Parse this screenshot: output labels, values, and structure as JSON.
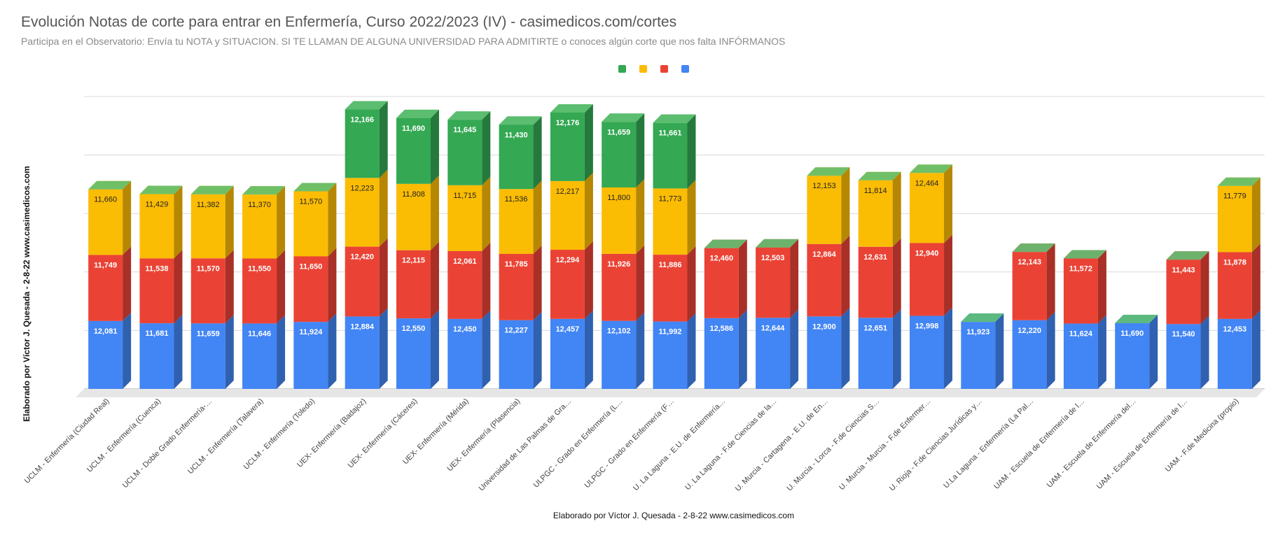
{
  "chart_data": {
    "type": "bar",
    "stacked": true,
    "three_d": true,
    "title": "Evolución Notas de corte para entrar en Enfermería, Curso 2022/2023 (IV) - casimedicos.com/cortes",
    "subtitle": "Participa en el Observatorio: Envía tu NOTA y SITUACION. SI TE LLAMAN DE ALGUNA UNIVERSIDAD PARA ADMITIRTE o conoces algún corte que nos falta INFÓRMANOS",
    "xlabel": "Elaborado por Víctor J. Quesada - 2-8-22  www.casimedicos.com",
    "ylabel": "Elaborado por Víctor J. Quesada - 2-8-22  www.casimedicos.com",
    "legend_position": "top-center",
    "grid": true,
    "ylim": [
      0,
      52
    ],
    "categories": [
      "UCLM - Enfermería (Ciudad Real)",
      "UCLM - Enfermería (Cuenca)",
      "UCLM - Doble Grado Enfermería-…",
      "UCLM - Enfermería (Talavera)",
      "UCLM - Enfermería (Toledo)",
      "UEX- Enfermería (Badajoz)",
      "UEX- Enfermería (Cáceres)",
      "UEX- Enfermería (Mérida)",
      "UEX- Enfermería (Plasencia)",
      "Universidad de Las Palmas de Gra…",
      "ULPGC - Grado en Enfermería (L…",
      "ULPGC - Grado en Enfermería (F…",
      "U. La Laguna - E.U. de Enfermería…",
      "U. La Laguna - F.de Ciencias de la…",
      "U. Murcia - Cartagena - E.U. de En…",
      "U. Murcia - Lorca - F.de Ciencias S…",
      "U. Murcia - Murcia - F.de Enfermer…",
      "U. Rioja - F.de Ciencias Jurídicas y…",
      "U.La Laguna - Enfermería (La Pal…",
      "UAM - Escuela de Enfermería de l…",
      "UAM - Escuela de Enfermería del…",
      "UAM - Escuela de Enfermería de l…",
      "UAM - F.de Medicina (propio)"
    ],
    "series": [
      {
        "color": "#4285f4",
        "values": [
          12.081,
          11.681,
          11.659,
          11.646,
          11.924,
          12.884,
          12.55,
          12.45,
          12.227,
          12.457,
          12.102,
          11.992,
          12.586,
          12.644,
          12.9,
          12.651,
          12.998,
          11.923,
          12.22,
          11.624,
          11.69,
          11.54,
          12.453
        ],
        "labels": [
          "12,081",
          "11,681",
          "11,659",
          "11,646",
          "11,924",
          "12,884",
          "12,550",
          "12,450",
          "12,227",
          "12,457",
          "12,102",
          "11,992",
          "12,586",
          "12,644",
          "12,900",
          "12,651",
          "12,998",
          "11,923",
          "12,220",
          "11,624",
          "11,690",
          "11,540",
          "12,453"
        ]
      },
      {
        "color": "#ea4335",
        "values": [
          11.749,
          11.538,
          11.57,
          11.55,
          11.65,
          12.42,
          12.115,
          12.061,
          11.785,
          12.294,
          11.926,
          11.886,
          12.46,
          12.503,
          12.864,
          12.631,
          12.94,
          null,
          12.143,
          11.572,
          null,
          11.443,
          11.878
        ],
        "labels": [
          "11,749",
          "11,538",
          "11,570",
          "11,550",
          "11,650",
          "12,420",
          "12,115",
          "12,061",
          "11,785",
          "12,294",
          "11,926",
          "11,886",
          "12,460",
          "12,503",
          "12,864",
          "12,631",
          "12,940",
          "",
          "12,143",
          "11,572",
          "",
          "11,443",
          "11,878"
        ]
      },
      {
        "color": "#fbbc04",
        "values": [
          11.66,
          11.429,
          11.382,
          11.37,
          11.57,
          12.223,
          11.808,
          11.715,
          11.536,
          12.217,
          11.8,
          11.773,
          null,
          null,
          12.153,
          11.814,
          12.464,
          null,
          null,
          null,
          null,
          null,
          11.779
        ],
        "labels": [
          "11,660",
          "11,429",
          "11,382",
          "11,370",
          "11,570",
          "12,223",
          "11,808",
          "11,715",
          "11,536",
          "12,217",
          "11,800",
          "11,773",
          "",
          "",
          "12,153",
          "11,814",
          "12,464",
          "",
          "",
          "",
          "",
          "",
          "11,779"
        ]
      },
      {
        "color": "#34a853",
        "values": [
          null,
          null,
          null,
          null,
          null,
          12.166,
          11.69,
          11.645,
          11.43,
          12.176,
          11.659,
          11.661,
          null,
          null,
          null,
          null,
          null,
          null,
          null,
          null,
          null,
          null,
          null
        ],
        "labels": [
          "",
          "",
          "",
          "",
          "",
          "12,166",
          "11,690",
          "11,645",
          "11,430",
          "12,176",
          "11,659",
          "11,661",
          "",
          "",
          "",
          "",
          "",
          "",
          "",
          "",
          "",
          "",
          ""
        ]
      }
    ]
  }
}
